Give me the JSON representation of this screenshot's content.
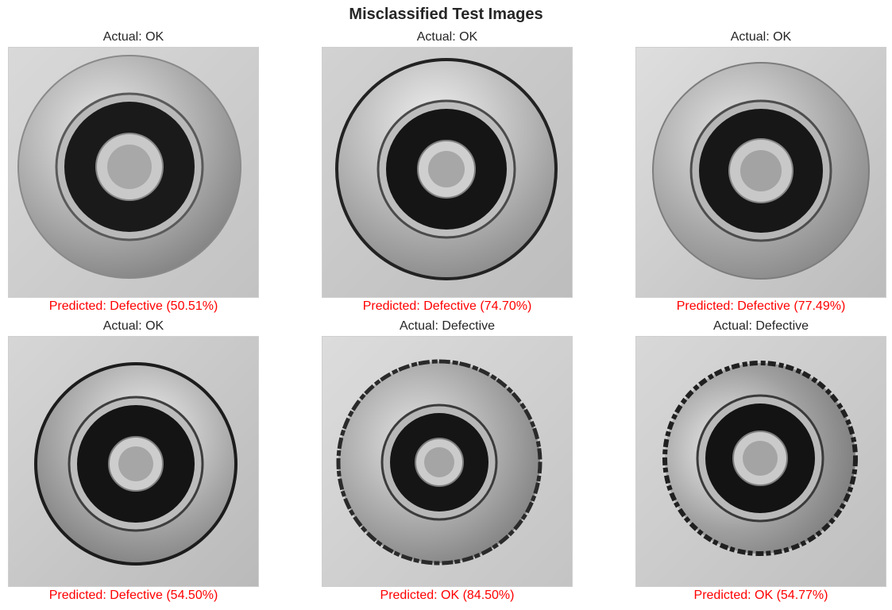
{
  "figure": {
    "title": "Misclassified Test Images"
  },
  "colors": {
    "predicted_text": "#ff0000",
    "actual_text": "#262626",
    "frame": "#cfcfcf"
  },
  "panels": [
    {
      "actual": "Actual: OK",
      "predicted": "Predicted: Defective (50.51%)",
      "image": "impeller-casting-icon",
      "ring_style": "plain"
    },
    {
      "actual": "Actual: OK",
      "predicted": "Predicted: Defective (74.70%)",
      "image": "impeller-casting-icon",
      "ring_style": "dark-rim"
    },
    {
      "actual": "Actual: OK",
      "predicted": "Predicted: Defective (77.49%)",
      "image": "impeller-casting-icon",
      "ring_style": "plain"
    },
    {
      "actual": "Actual: OK",
      "predicted": "Predicted: Defective (54.50%)",
      "image": "impeller-casting-icon",
      "ring_style": "dark-rim"
    },
    {
      "actual": "Actual: Defective",
      "predicted": "Predicted: OK (84.50%)",
      "image": "impeller-casting-icon",
      "ring_style": "rough-edge"
    },
    {
      "actual": "Actual: Defective",
      "predicted": "Predicted: OK (54.77%)",
      "image": "impeller-casting-icon",
      "ring_style": "rough-edge"
    }
  ]
}
